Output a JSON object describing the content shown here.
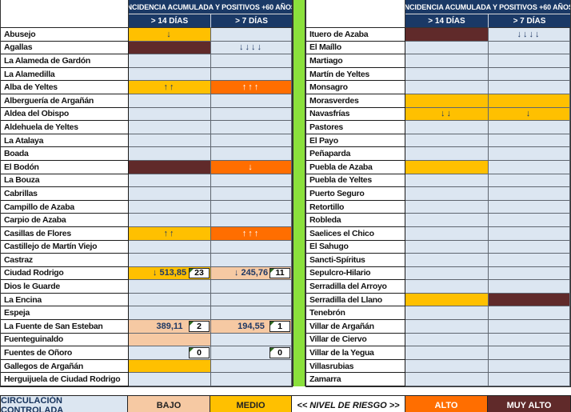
{
  "colors": {
    "header_navy": "#1A3966",
    "cell_blue": "#DCE6F1",
    "risk_yellow": "#FFC000",
    "risk_orange": "#FF6E00",
    "risk_dark_red": "#602A2A",
    "risk_salmon": "#F6C9A3",
    "divider_green": "#8BE03C",
    "arrow_navy": "#1F3864",
    "flag_green": "#2E6B1E"
  },
  "header": {
    "title": "INCIDENCIA ACUMULADA Y POSITIVOS +60 AÑOS",
    "col_14": "> 14 DÍAS",
    "col_7": "> 7 DÍAS"
  },
  "legend": {
    "items": [
      {
        "label": "CIRCULACIÓN CONTROLADA",
        "bg": "blue"
      },
      {
        "label": "BAJO",
        "bg": "salmon"
      },
      {
        "label": "MEDIO",
        "bg": "yellow"
      },
      {
        "label": "<< NIVEL DE RIESGO >>",
        "bg": "white"
      },
      {
        "label": "ALTO",
        "bg": "orange"
      },
      {
        "label": "MUY ALTO",
        "bg": "dark"
      }
    ]
  },
  "chart_data": {
    "type": "table",
    "title": "INCIDENCIA ACUMULADA Y POSITIVOS +60 AÑOS",
    "columns": [
      "Municipio",
      "> 14 DÍAS",
      "> 7 DÍAS"
    ],
    "risk_levels": [
      "CIRCULACIÓN CONTROLADA",
      "BAJO",
      "MEDIO",
      "ALTO",
      "MUY ALTO"
    ],
    "left_rows": [
      {
        "name": "Abusejo",
        "c14": {
          "bg": "yellow",
          "text": "↓",
          "arrows": true
        },
        "c7": null
      },
      {
        "name": "Agallas",
        "c14": {
          "bg": "dark"
        },
        "c7": {
          "bg": "blue",
          "text": "↓↓↓↓",
          "arrows": true
        }
      },
      {
        "name": "La Alameda de Gardón",
        "c14": null,
        "c7": null
      },
      {
        "name": "La Alamedilla",
        "c14": null,
        "c7": null
      },
      {
        "name": "Alba de Yeltes",
        "c14": {
          "bg": "yellow",
          "text": "↑↑",
          "arrows": true
        },
        "c7": {
          "bg": "orange",
          "text": "↑↑↑",
          "arrows": true
        }
      },
      {
        "name": "Alberguería de Argañán",
        "c14": null,
        "c7": null
      },
      {
        "name": "Aldea del Obispo",
        "c14": null,
        "c7": null
      },
      {
        "name": "Aldehuela de Yeltes",
        "c14": null,
        "c7": null
      },
      {
        "name": "La Atalaya",
        "c14": null,
        "c7": null
      },
      {
        "name": "Boada",
        "c14": null,
        "c7": null
      },
      {
        "name": "El Bodón",
        "c14": {
          "bg": "dark"
        },
        "c7": {
          "bg": "orange",
          "text": "↓",
          "arrows": true
        }
      },
      {
        "name": "La Bouza",
        "c14": null,
        "c7": null
      },
      {
        "name": "Cabrillas",
        "c14": null,
        "c7": null
      },
      {
        "name": "Campillo de Azaba",
        "c14": null,
        "c7": null
      },
      {
        "name": "Carpio de Azaba",
        "c14": null,
        "c7": null
      },
      {
        "name": "Casillas de Flores",
        "c14": {
          "bg": "yellow",
          "text": "↑↑",
          "arrows": true
        },
        "c7": {
          "bg": "orange",
          "text": "↑↑↑",
          "arrows": true
        }
      },
      {
        "name": "Castillejo de Martín Viejo",
        "c14": null,
        "c7": null
      },
      {
        "name": "Castraz",
        "c14": null,
        "c7": null
      },
      {
        "name": "Ciudad Rodrigo",
        "c14": {
          "bg": "yellow",
          "text": "↓ 513,85",
          "box": "23"
        },
        "c7": {
          "bg": "salmon",
          "text": "↓ 245,76",
          "box": "11"
        }
      },
      {
        "name": "Dios le Guarde",
        "c14": null,
        "c7": null
      },
      {
        "name": "La Encina",
        "c14": null,
        "c7": null
      },
      {
        "name": "Espeja",
        "c14": null,
        "c7": null
      },
      {
        "name": "La Fuente de San Esteban",
        "c14": {
          "bg": "salmon",
          "text": "389,11",
          "box": "2"
        },
        "c7": {
          "bg": "salmon",
          "text": "194,55",
          "box": "1"
        }
      },
      {
        "name": "Fuenteguinaldo",
        "c14": {
          "bg": "salmon"
        },
        "c7": null
      },
      {
        "name": "Fuentes de Oñoro",
        "c14": {
          "bg": "blue",
          "box": "0"
        },
        "c7": {
          "bg": "blue",
          "box": "0"
        }
      },
      {
        "name": "Gallegos de Argañán",
        "c14": {
          "bg": "yellow"
        },
        "c7": null
      },
      {
        "name": "Herguijuela de Ciudad Rodrigo",
        "c14": null,
        "c7": null
      }
    ],
    "right_rows": [
      {
        "name": "Ituero de Azaba",
        "c14": {
          "bg": "dark"
        },
        "c7": {
          "bg": "blue",
          "text": "↓↓↓↓",
          "arrows": true
        }
      },
      {
        "name": "El Maíllo",
        "c14": null,
        "c7": null
      },
      {
        "name": "Martiago",
        "c14": null,
        "c7": null
      },
      {
        "name": "Martín de Yeltes",
        "c14": null,
        "c7": null
      },
      {
        "name": "Monsagro",
        "c14": null,
        "c7": null
      },
      {
        "name": "Morasverdes",
        "c14": {
          "bg": "yellow"
        },
        "c7": {
          "bg": "yellow"
        }
      },
      {
        "name": "Navasfrías",
        "c14": {
          "bg": "yellow",
          "text": "↓↓",
          "arrows": true
        },
        "c7": {
          "bg": "yellow",
          "text": "↓",
          "arrows": true
        }
      },
      {
        "name": "Pastores",
        "c14": null,
        "c7": null
      },
      {
        "name": "El Payo",
        "c14": null,
        "c7": null
      },
      {
        "name": "Peñaparda",
        "c14": null,
        "c7": null
      },
      {
        "name": "Puebla de Azaba",
        "c14": {
          "bg": "yellow"
        },
        "c7": null
      },
      {
        "name": "Puebla de Yeltes",
        "c14": null,
        "c7": null
      },
      {
        "name": "Puerto Seguro",
        "c14": null,
        "c7": null
      },
      {
        "name": "Retortillo",
        "c14": null,
        "c7": null
      },
      {
        "name": "Robleda",
        "c14": null,
        "c7": null
      },
      {
        "name": "Saelices el Chico",
        "c14": null,
        "c7": null
      },
      {
        "name": "El Sahugo",
        "c14": null,
        "c7": null
      },
      {
        "name": "Sancti-Spíritus",
        "c14": null,
        "c7": null
      },
      {
        "name": "Sepulcro-Hilario",
        "c14": null,
        "c7": null
      },
      {
        "name": "Serradilla del Arroyo",
        "c14": null,
        "c7": null
      },
      {
        "name": "Serradilla del Llano",
        "c14": {
          "bg": "yellow"
        },
        "c7": {
          "bg": "dark"
        }
      },
      {
        "name": "Tenebrón",
        "c14": null,
        "c7": null
      },
      {
        "name": "Villar de Argañán",
        "c14": null,
        "c7": null
      },
      {
        "name": "Villar de Ciervo",
        "c14": null,
        "c7": null
      },
      {
        "name": "Villar de la Yegua",
        "c14": null,
        "c7": null
      },
      {
        "name": "Villasrubias",
        "c14": null,
        "c7": null
      },
      {
        "name": "Zamarra",
        "c14": null,
        "c7": null
      }
    ]
  }
}
